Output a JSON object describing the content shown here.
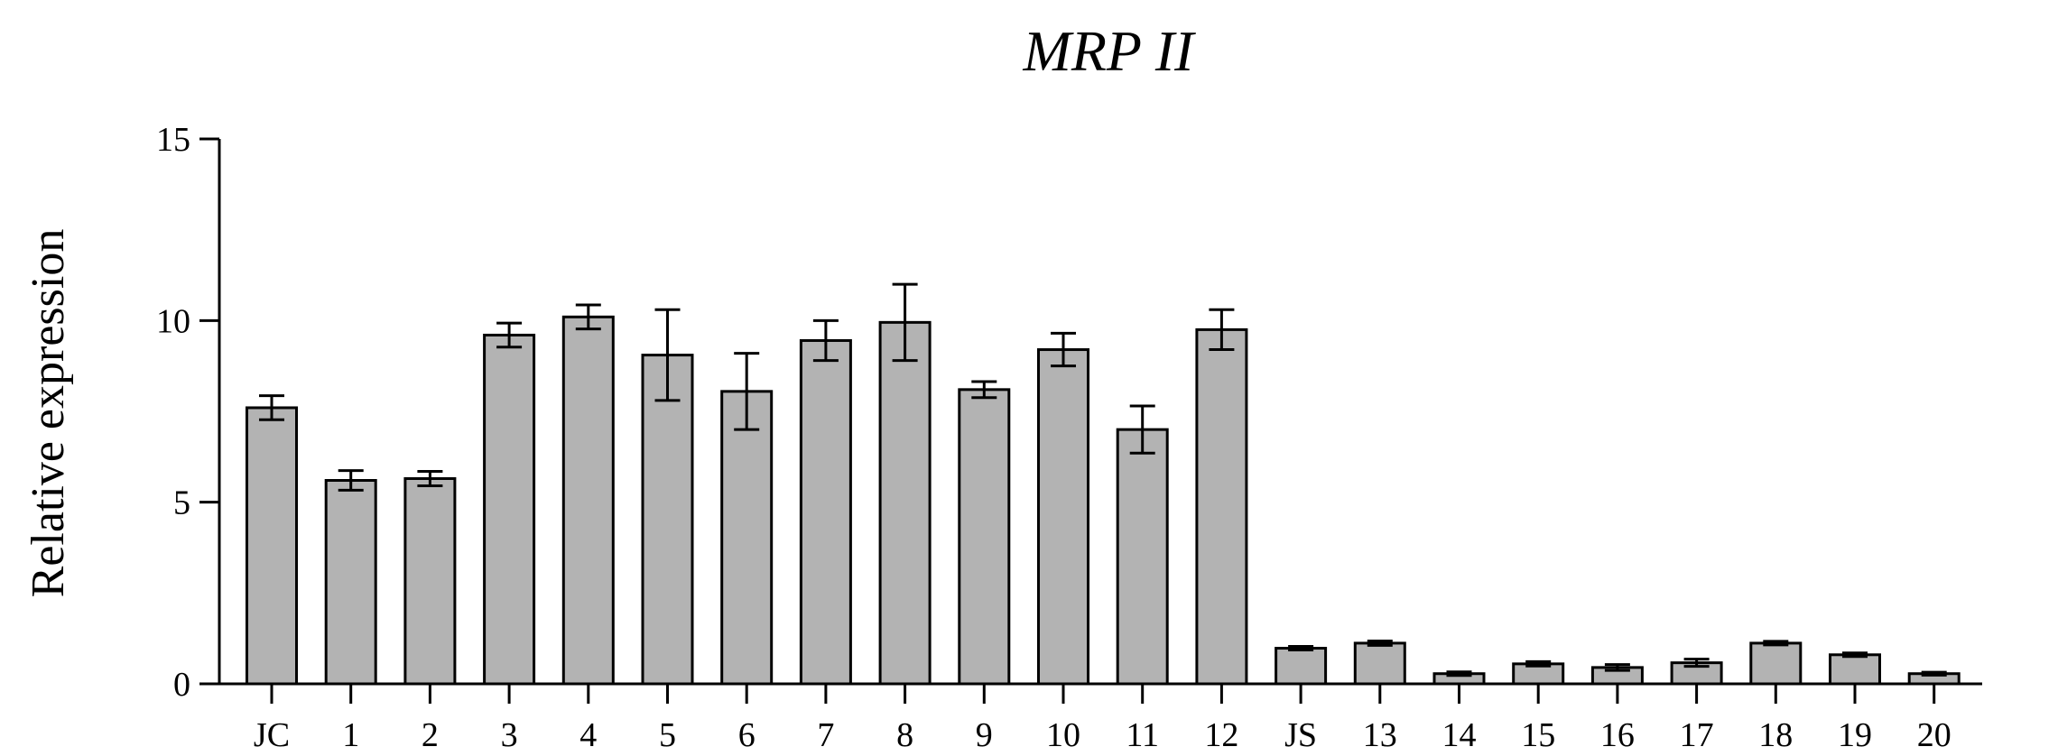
{
  "chart_data": {
    "type": "bar",
    "title": "MRP II",
    "ylabel": "Relative expression",
    "xlabel": "",
    "ylim": [
      0,
      15
    ],
    "yticks": [
      0,
      5,
      10,
      15
    ],
    "grid": false,
    "bar_color": "#b3b3b3",
    "categories": [
      "JC",
      "1",
      "2",
      "3",
      "4",
      "5",
      "6",
      "7",
      "8",
      "9",
      "10",
      "11",
      "12",
      "JS",
      "13",
      "14",
      "15",
      "16",
      "17",
      "18",
      "19",
      "20"
    ],
    "values": [
      7.6,
      5.6,
      5.65,
      9.6,
      10.1,
      9.05,
      8.05,
      9.45,
      9.95,
      8.1,
      9.2,
      7.0,
      9.75,
      0.98,
      1.12,
      0.28,
      0.55,
      0.45,
      0.58,
      1.12,
      0.8,
      0.28
    ],
    "errors": [
      0.33,
      0.27,
      0.2,
      0.33,
      0.33,
      1.25,
      1.05,
      0.55,
      1.05,
      0.22,
      0.45,
      0.65,
      0.55,
      0.05,
      0.06,
      0.05,
      0.06,
      0.08,
      0.1,
      0.05,
      0.05,
      0.04
    ]
  }
}
